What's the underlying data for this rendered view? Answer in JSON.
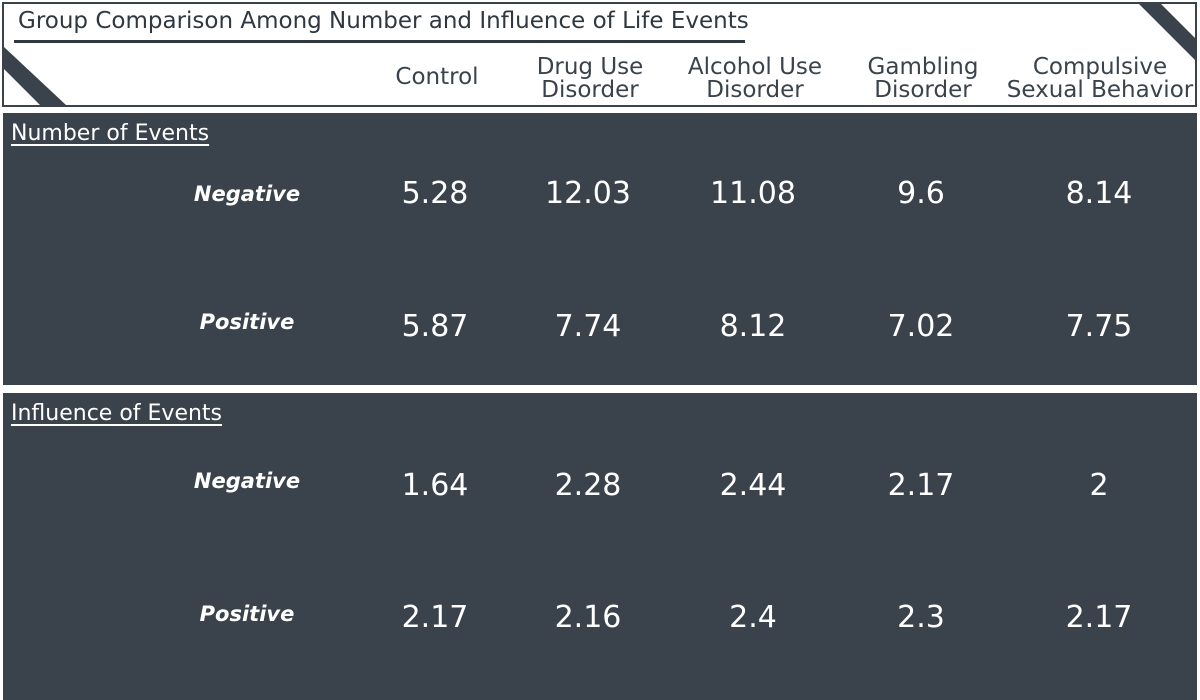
{
  "chart_data": {
    "type": "table",
    "title": "Group Comparison Among Number and Influence of Life Events",
    "columns": [
      [
        "Control"
      ],
      [
        "Drug Use",
        "Disorder"
      ],
      [
        "Alcohol Use",
        "Disorder"
      ],
      [
        "Gambling",
        "Disorder"
      ],
      [
        "Compulsive",
        "Sexual Behavior"
      ]
    ],
    "sections": [
      {
        "title": "Number of Events",
        "rows": [
          {
            "label": "Negative",
            "values": [
              "5.28",
              "12.03",
              "11.08",
              "9.6",
              "8.14"
            ]
          },
          {
            "label": "Positive",
            "values": [
              "5.87",
              "7.74",
              "8.12",
              "7.02",
              "7.75"
            ]
          }
        ]
      },
      {
        "title": "Influence of Events",
        "rows": [
          {
            "label": "Negative",
            "values": [
              "1.64",
              "2.28",
              "2.44",
              "2.17",
              "2"
            ]
          },
          {
            "label": "Positive",
            "values": [
              "2.17",
              "2.16",
              "2.4",
              "2.3",
              "2.17"
            ]
          }
        ]
      }
    ]
  },
  "colors": {
    "panel": "#3a434b",
    "text_on_panel": "#ffffff",
    "header_text": "#3a434b"
  }
}
